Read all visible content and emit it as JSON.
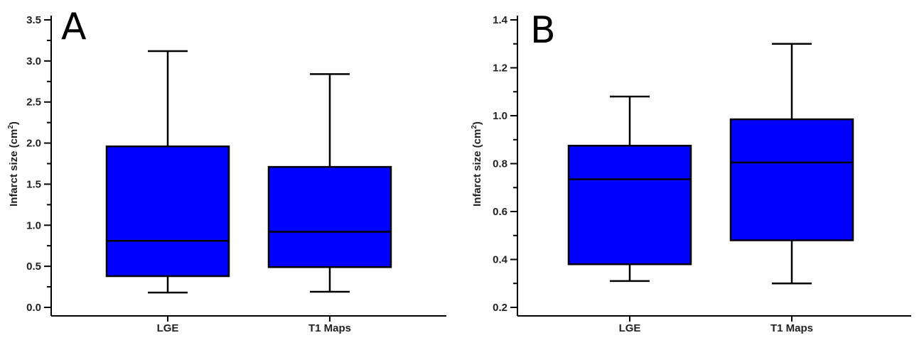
{
  "chart_data": [
    {
      "type": "box",
      "panel_label": "A",
      "title": "",
      "xlabel": "",
      "ylabel": "Infarct size (cm",
      "ylabel_sup": "2",
      "ylabel_close": ")",
      "ylim": [
        0.0,
        3.5
      ],
      "yticks": [
        0.0,
        0.5,
        1.0,
        1.5,
        2.0,
        2.5,
        3.0,
        3.5
      ],
      "ytick_labels": [
        "0.0",
        "0.5",
        "1.0",
        "1.5",
        "2.0",
        "2.5",
        "3.0",
        "3.5"
      ],
      "categories": [
        "LGE",
        "T1 Maps"
      ],
      "boxes": [
        {
          "category": "LGE",
          "whisker_low": 0.18,
          "q1": 0.38,
          "median": 0.81,
          "q3": 1.96,
          "whisker_high": 3.12
        },
        {
          "category": "T1 Maps",
          "whisker_low": 0.19,
          "q1": 0.49,
          "median": 0.92,
          "q3": 1.71,
          "whisker_high": 2.84
        }
      ],
      "box_color": "#0000ff"
    },
    {
      "type": "box",
      "panel_label": "B",
      "title": "",
      "xlabel": "",
      "ylabel": "Infarct size (cm",
      "ylabel_sup": "2",
      "ylabel_close": ")",
      "ylim": [
        0.2,
        1.4
      ],
      "yticks": [
        0.2,
        0.4,
        0.6,
        0.8,
        1.0,
        1.2,
        1.4
      ],
      "ytick_labels": [
        "0.2",
        "0.4",
        "0.6",
        "0.8",
        "1.0",
        "1.2",
        "1.4"
      ],
      "categories": [
        "LGE",
        "T1 Maps"
      ],
      "boxes": [
        {
          "category": "LGE",
          "whisker_low": 0.31,
          "q1": 0.38,
          "median": 0.735,
          "q3": 0.875,
          "whisker_high": 1.08
        },
        {
          "category": "T1 Maps",
          "whisker_low": 0.3,
          "q1": 0.48,
          "median": 0.805,
          "q3": 0.985,
          "whisker_high": 1.3
        }
      ],
      "box_color": "#0000ff"
    }
  ]
}
